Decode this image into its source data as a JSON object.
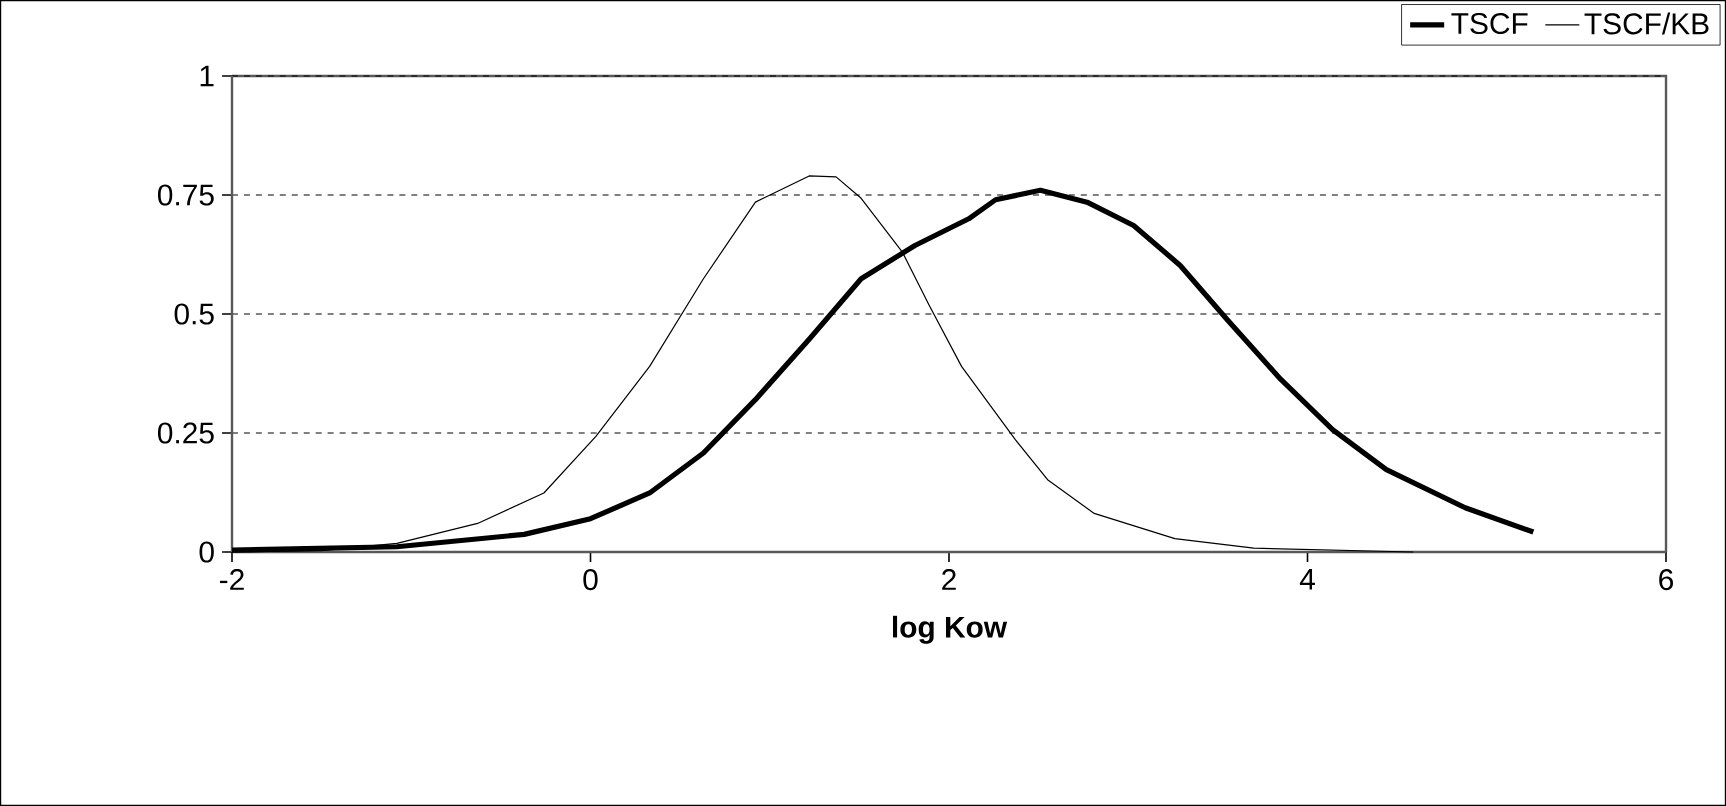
{
  "chart_data": {
    "type": "line",
    "xlabel": "log Kow",
    "xlim": [
      -2,
      6
    ],
    "xticks": [
      -2,
      0,
      2,
      4,
      6
    ],
    "ylim": [
      0,
      1
    ],
    "yticks": [
      0,
      0.25,
      0.5,
      0.75,
      1
    ],
    "grid": "y",
    "legend": "top right",
    "marker": "none",
    "line_style": "solid",
    "series": [
      {
        "name": "TSCF",
        "color": "#000000",
        "x": [
          -2,
          -1.08,
          -0.37,
          0,
          0.33,
          0.63,
          0.92,
          1.22,
          1.51,
          1.81,
          2.11,
          2.26,
          2.51,
          2.77,
          3.03,
          3.29,
          3.55,
          3.85,
          4.14,
          4.44,
          4.88,
          5.26
        ],
        "values": [
          0.004,
          0.011,
          0.037,
          0.07,
          0.124,
          0.208,
          0.32,
          0.447,
          0.574,
          0.644,
          0.7,
          0.74,
          0.76,
          0.735,
          0.686,
          0.602,
          0.489,
          0.363,
          0.257,
          0.173,
          0.093,
          0.042
        ]
      },
      {
        "name": "TSCF/KB",
        "color": "#000000",
        "x": [
          -2,
          -1.5,
          -1.08,
          -0.63,
          -0.26,
          0.03,
          0.33,
          0.63,
          0.92,
          1.22,
          1.37,
          1.51,
          1.74,
          1.89,
          2.07,
          2.37,
          2.55,
          2.81,
          3.26,
          3.7,
          4.59
        ],
        "values": [
          0,
          0.003,
          0.018,
          0.06,
          0.124,
          0.243,
          0.39,
          0.574,
          0.735,
          0.79,
          0.788,
          0.743,
          0.63,
          0.518,
          0.39,
          0.236,
          0.152,
          0.081,
          0.028,
          0.008,
          0
        ]
      }
    ]
  }
}
